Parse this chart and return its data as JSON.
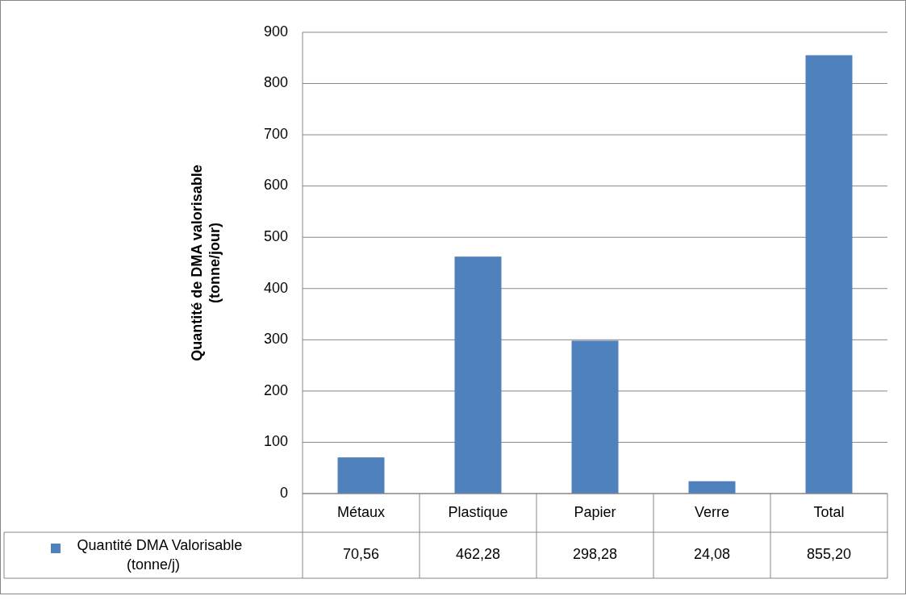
{
  "chart_data": {
    "type": "bar",
    "ylabel": "Quantité de DMA valorisable\n(tonne/jour)",
    "categories": [
      "Métaux",
      "Plastique",
      "Papier",
      "Verre",
      "Total"
    ],
    "series": [
      {
        "name": "Quantité DMA Valorisable\n(tonne/j)",
        "color": "#4f81bd",
        "values": [
          70.56,
          462.28,
          298.28,
          24.08,
          855.2
        ],
        "value_labels": [
          "70,56",
          "462,28",
          "298,28",
          "24,08",
          "855,20"
        ]
      }
    ],
    "ylim": [
      0,
      900
    ],
    "yticks": [
      0,
      100,
      200,
      300,
      400,
      500,
      600,
      700,
      800,
      900
    ],
    "grid": "y",
    "legend": "bottom"
  }
}
